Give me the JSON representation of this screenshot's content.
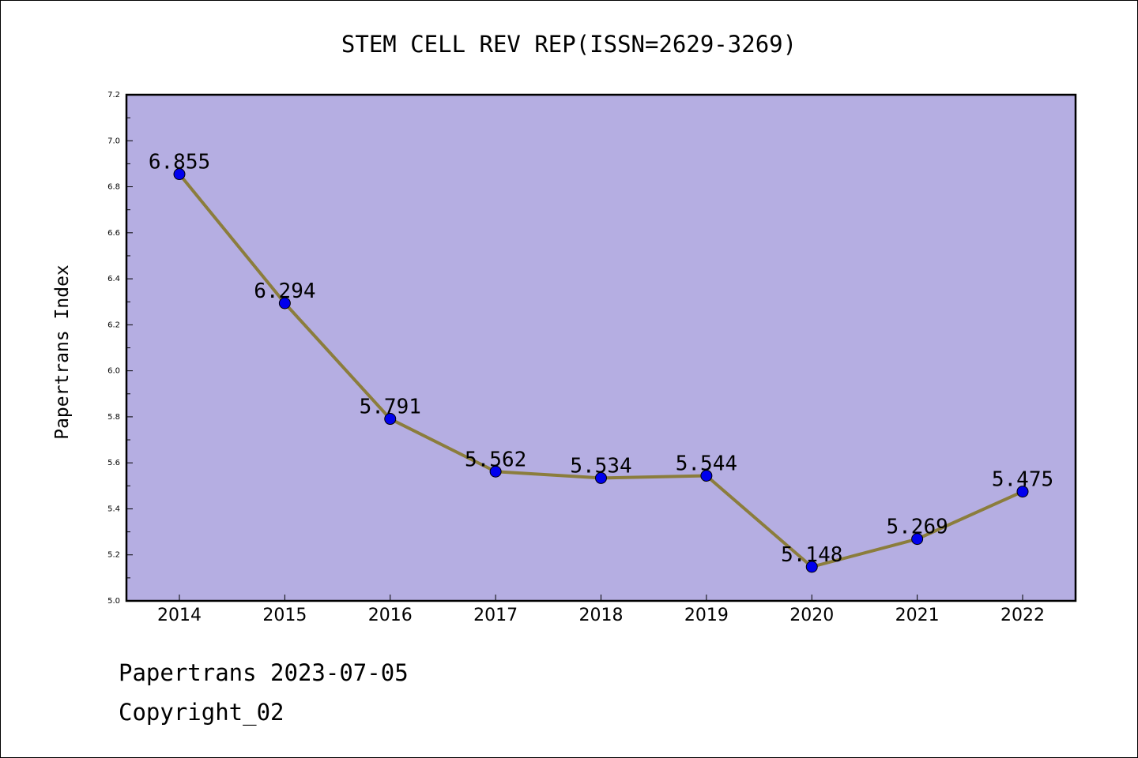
{
  "chart_data": {
    "type": "line",
    "title": "STEM CELL REV REP(ISSN=2629-3269)",
    "xlabel": "",
    "ylabel": "Papertrans Index",
    "categories": [
      "2014",
      "2015",
      "2016",
      "2017",
      "2018",
      "2019",
      "2020",
      "2021",
      "2022"
    ],
    "series": [
      {
        "values": [
          6.855,
          6.294,
          5.791,
          5.562,
          5.534,
          5.544,
          5.148,
          5.269,
          5.475
        ],
        "labels": [
          "6.855",
          "6.294",
          "5.791",
          "5.562",
          "5.534",
          "5.544",
          "5.148",
          "5.269",
          "5.475"
        ]
      }
    ],
    "ylim": [
      5.0,
      7.2
    ],
    "yticks": [
      "5.0",
      "5.2",
      "5.4",
      "5.6",
      "5.8",
      "6.0",
      "6.2",
      "6.4",
      "6.6",
      "6.8",
      "7.0",
      "7.2"
    ],
    "grid": false,
    "colors": {
      "plot_background": "#b5aee2",
      "line": "#8b7d3c",
      "marker": "#0000ee"
    }
  },
  "footer": {
    "date_line": "Papertrans 2023-07-05",
    "copyright": "Copyright_02"
  }
}
